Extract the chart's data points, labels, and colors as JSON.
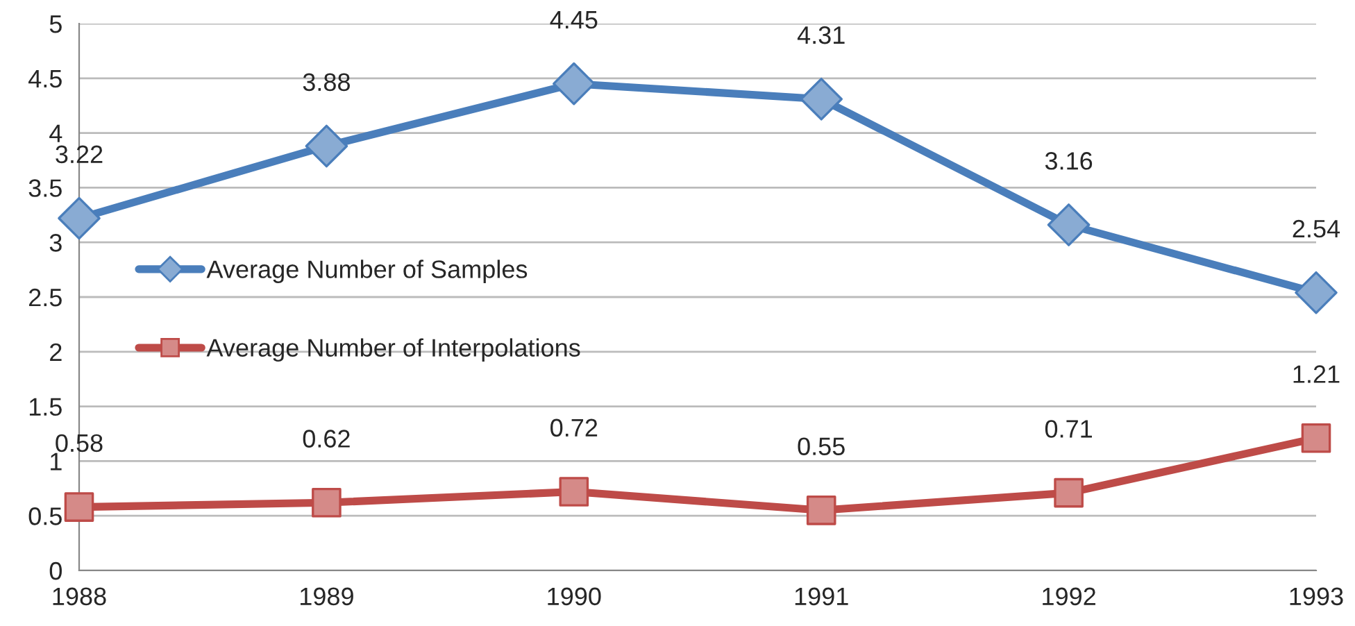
{
  "chart_data": {
    "type": "line",
    "x": [
      1988,
      1989,
      1990,
      1991,
      1992,
      1993
    ],
    "series": [
      {
        "name": "Average Number of Samples",
        "color": "#4a7ebb",
        "marker": "diamond",
        "values": [
          3.22,
          3.88,
          4.45,
          4.31,
          3.16,
          2.54
        ]
      },
      {
        "name": "Average Number of Interpolations",
        "color": "#be4b48",
        "marker": "square",
        "values": [
          0.58,
          0.62,
          0.72,
          0.55,
          0.71,
          1.21
        ]
      }
    ],
    "xlim": [
      1988,
      1993
    ],
    "xticks": [
      1988,
      1989,
      1990,
      1991,
      1992,
      1993
    ],
    "ylim": [
      0,
      5
    ],
    "yticks": [
      0,
      0.5,
      1,
      1.5,
      2,
      2.5,
      3,
      3.5,
      4,
      4.5,
      5
    ],
    "grid": "y",
    "legend": "left",
    "data_labels": true,
    "line_style": "solid"
  }
}
